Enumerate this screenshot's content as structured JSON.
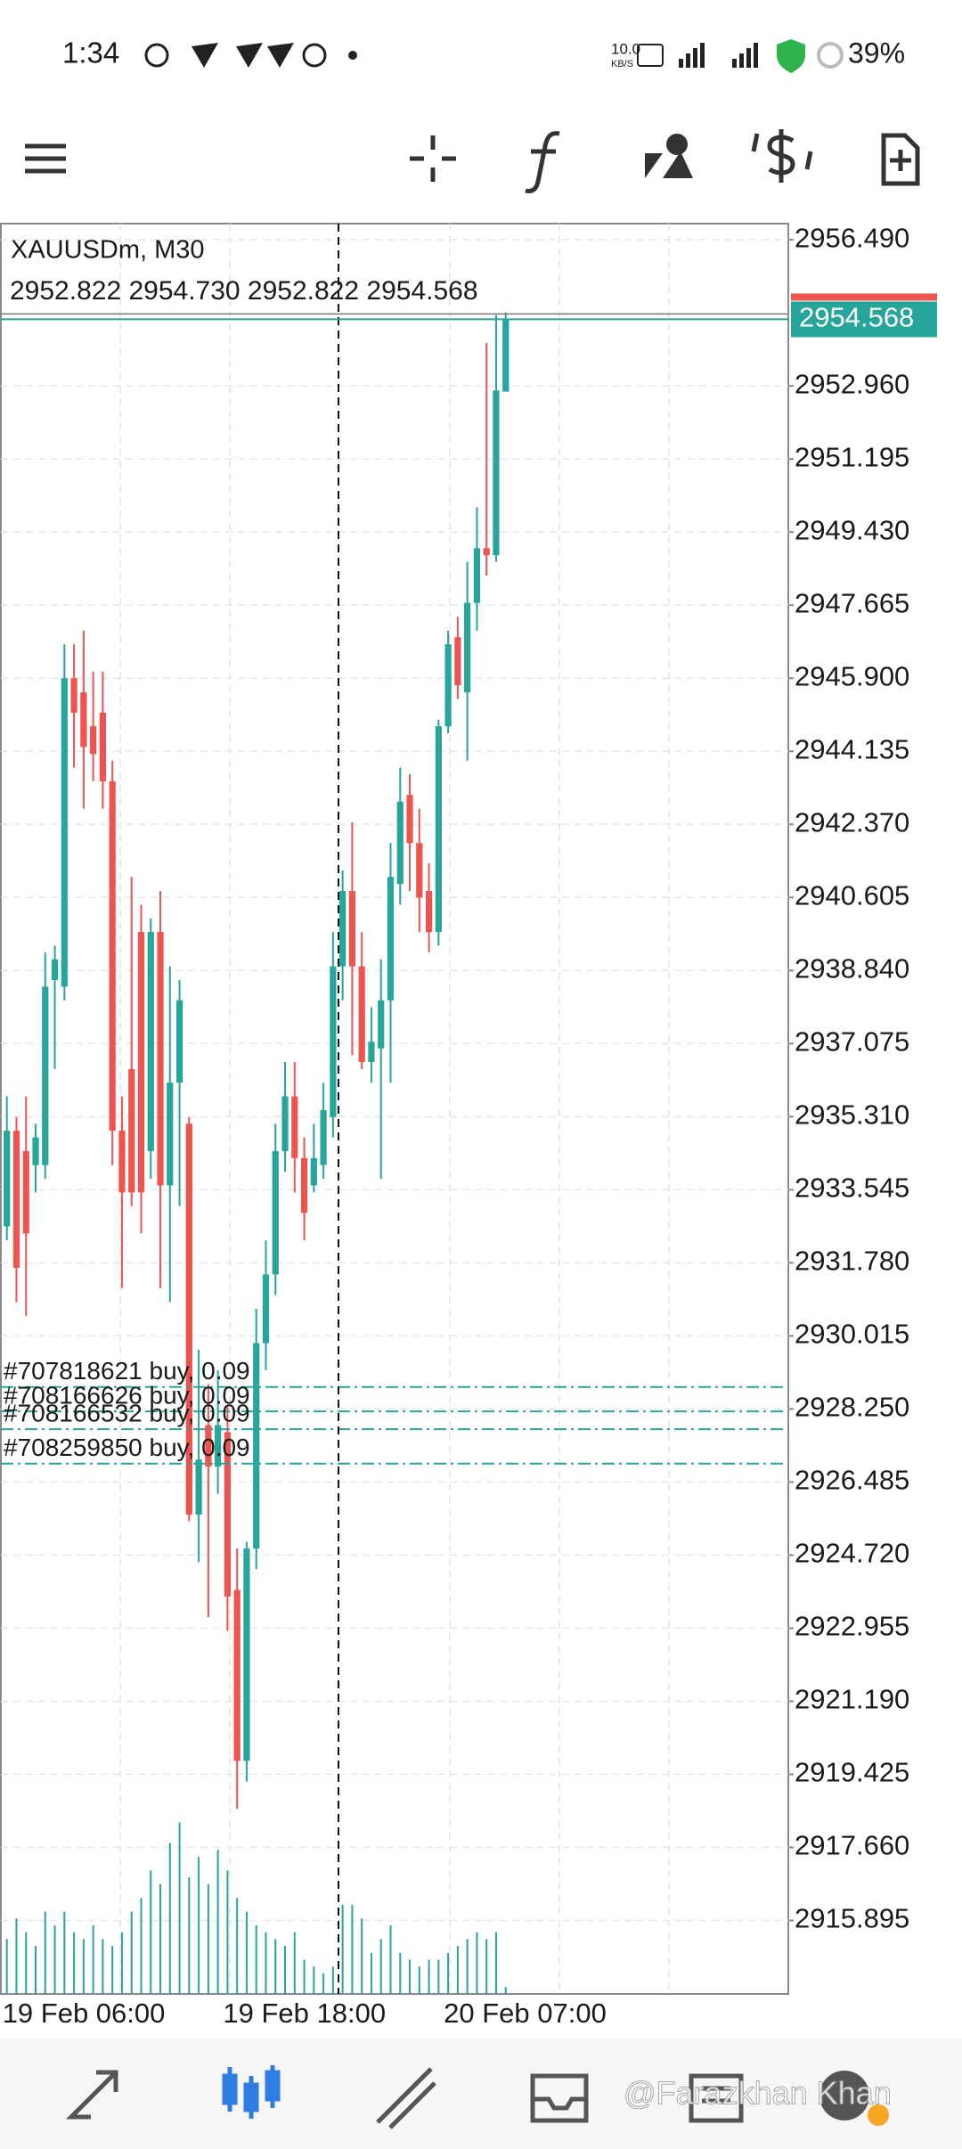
{
  "status_bar": {
    "time": "1:34",
    "net_speed": "10.0",
    "net_unit": "KB/S",
    "battery": "39%"
  },
  "chart_data": {
    "type": "candlestick",
    "symbol": "XAUUSDm, M30",
    "ohlc_header": "2952.822 2954.730 2952.822 2954.568",
    "categories": [
      "19 Feb 06:00",
      null,
      null,
      null,
      null,
      null,
      null,
      null,
      null,
      null,
      null,
      null,
      null,
      null,
      null,
      null,
      null,
      null,
      null,
      null,
      null,
      null,
      null,
      "19 Feb 18:00",
      null,
      null,
      null,
      null,
      null,
      null,
      null,
      null,
      null,
      null,
      null,
      null,
      null,
      null,
      null,
      null,
      null,
      null,
      null,
      null,
      null,
      null,
      "20 Feb 07:00",
      null,
      null,
      null,
      null,
      null,
      null
    ],
    "open": [
      2932.66,
      2934.97,
      2934.48,
      2934.14,
      2934.14,
      2938.61,
      2938.45,
      2945.9,
      2945.56,
      2944.74,
      2945.07,
      2943.41,
      2934.97,
      2936.46,
      2939.77,
      2934.48,
      2939.77,
      2933.65,
      2936.13,
      2935.14,
      2925.7,
      2927.86,
      2926.86,
      2927.69,
      2923.88,
      2919.75,
      2924.88,
      2929.84,
      2931.5,
      2934.48,
      2935.8,
      2934.31,
      2933.65,
      2934.14,
      2935.3,
      2938.94,
      2940.76,
      2938.94,
      2936.63,
      2936.96,
      2938.12,
      2940.93,
      2943.08,
      2941.92,
      2940.76,
      2939.77,
      2944.74,
      2946.89,
      2945.56,
      2947.72,
      2949.04,
      2948.87,
      2952.822
    ],
    "high": [
      2935.8,
      2935.3,
      2935.8,
      2935.14,
      2939.28,
      2939.44,
      2946.72,
      2946.72,
      2947.05,
      2946.06,
      2946.06,
      2943.91,
      2935.8,
      2941.1,
      2940.43,
      2940.1,
      2940.76,
      2938.94,
      2938.61,
      2935.3,
      2929.68,
      2928.85,
      2929.18,
      2928.35,
      2924.88,
      2925.04,
      2930.67,
      2932.32,
      2935.14,
      2936.63,
      2936.63,
      2934.81,
      2935.14,
      2936.13,
      2939.77,
      2941.26,
      2942.42,
      2939.77,
      2937.95,
      2939.11,
      2941.92,
      2943.74,
      2943.58,
      2942.75,
      2941.43,
      2944.9,
      2947.05,
      2947.38,
      2948.71,
      2950.03,
      2954.0,
      2954.67,
      2954.73
    ],
    "low": [
      2932.32,
      2930.83,
      2930.5,
      2933.48,
      2933.81,
      2936.46,
      2938.12,
      2943.74,
      2942.75,
      2943.41,
      2942.75,
      2934.14,
      2931.17,
      2933.15,
      2932.49,
      2933.81,
      2931.17,
      2930.83,
      2933.15,
      2925.54,
      2924.55,
      2923.22,
      2926.2,
      2922.89,
      2918.59,
      2919.25,
      2924.38,
      2929.18,
      2931.0,
      2933.98,
      2933.48,
      2932.32,
      2933.48,
      2933.81,
      2934.81,
      2938.12,
      2936.79,
      2936.46,
      2936.13,
      2933.81,
      2936.13,
      2940.43,
      2940.76,
      2939.77,
      2939.28,
      2939.44,
      2944.57,
      2945.4,
      2943.91,
      2947.05,
      2948.38,
      2948.71,
      2952.822
    ],
    "close": [
      2934.97,
      2931.66,
      2932.49,
      2934.81,
      2938.45,
      2939.11,
      2945.9,
      2945.07,
      2944.24,
      2944.07,
      2943.41,
      2934.97,
      2933.48,
      2933.48,
      2933.48,
      2939.77,
      2933.65,
      2936.13,
      2938.12,
      2925.7,
      2927.03,
      2926.86,
      2927.86,
      2923.72,
      2919.75,
      2924.88,
      2929.84,
      2931.5,
      2934.48,
      2935.8,
      2934.31,
      2932.99,
      2934.31,
      2935.47,
      2938.94,
      2940.76,
      2938.94,
      2936.63,
      2937.12,
      2938.12,
      2941.1,
      2942.92,
      2941.92,
      2940.6,
      2939.77,
      2944.74,
      2946.72,
      2945.73,
      2947.72,
      2949.04,
      2948.87,
      2952.85,
      2954.568
    ],
    "volume": [
      40,
      55,
      45,
      35,
      60,
      50,
      60,
      45,
      40,
      50,
      40,
      35,
      45,
      60,
      70,
      90,
      80,
      110,
      125,
      85,
      100,
      80,
      105,
      90,
      70,
      60,
      50,
      45,
      40,
      35,
      45,
      25,
      20,
      15,
      20,
      65,
      65,
      55,
      30,
      40,
      50,
      30,
      25,
      20,
      25,
      25,
      30,
      35,
      40,
      45,
      40,
      45,
      5
    ],
    "up_color": "#26a69a",
    "down_color": "#ef5350",
    "ylim": [
      2914.12,
      2956.88
    ],
    "yticks": [
      {
        "value": 2956.49,
        "label": "2956.490"
      },
      {
        "value": 2952.96,
        "label": "2952.960"
      },
      2951.195,
      {
        "value": 2949.43,
        "label": "2949.430"
      },
      2947.665,
      {
        "value": 2945.9,
        "label": "2945.900"
      },
      2944.135,
      {
        "value": 2942.37,
        "label": "2942.370"
      },
      2940.605,
      {
        "value": 2938.84,
        "label": "2938.840"
      },
      2937.075,
      {
        "value": 2935.31,
        "label": "2935.310"
      },
      2933.545,
      {
        "value": 2931.78,
        "label": "2931.780"
      },
      {
        "value": 2930.015,
        "label": "2930.015"
      },
      {
        "value": 2928.25,
        "label": "2928.250"
      },
      2926.485,
      {
        "value": 2924.72,
        "label": "2924.720"
      },
      2922.955,
      {
        "value": 2921.19,
        "label": "2921.190"
      },
      2919.425,
      {
        "value": 2917.66,
        "label": "2917.660"
      },
      2915.895
    ],
    "bid": 2954.568,
    "orders": [
      {
        "label": "#707818621 buy, 0.09",
        "price": 2928.78
      },
      {
        "label": "#708166626 buy, 0.09",
        "price": 2928.19
      },
      {
        "label": "#708166532 buy, 0.09",
        "price": 2927.76
      },
      {
        "label": "#708259850 buy, 0.09",
        "price": 2926.93
      }
    ],
    "grid": true
  },
  "watermark": "@Farazkhan Khan"
}
